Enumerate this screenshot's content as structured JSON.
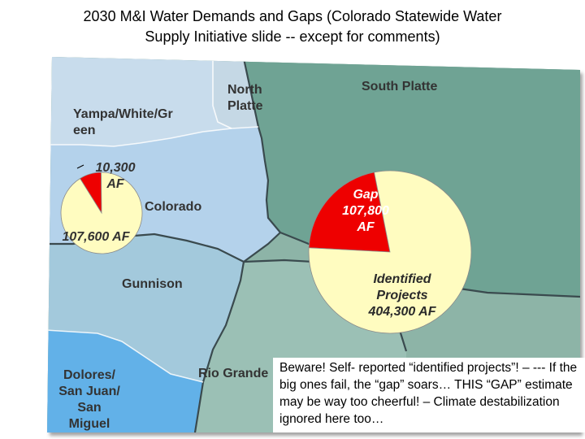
{
  "title": {
    "line1": "2030 M&I Water Demands and Gaps (Colorado Statewide Water",
    "line2": "Supply Initiative slide  -- except for comments)"
  },
  "colors": {
    "yampa": "#c8dcec",
    "north_platte": "#c5d8e5",
    "south_platte": "#6fa394",
    "colorado": "#b4d2eb",
    "gunnison": "#a3c9dc",
    "rio_grande": "#9bc0b5",
    "arkansas": "#8db4a7",
    "dolores": "#62b1e8",
    "gap_red": "#ee0000",
    "pie_fill": "#fffcc0"
  },
  "regions": {
    "yampa": "Yampa/White/Gr\neen",
    "north_platte": "North\nPlatte",
    "south_platte": "South Platte",
    "colorado": "Colorado",
    "gunnison": "Gunnison",
    "dolores": "Dolores/\nSan Juan/\nSan\nMiguel",
    "rio_grande": "Rio Grande"
  },
  "chart_data": [
    {
      "type": "pie",
      "region": "Colorado",
      "slices": [
        {
          "label": "10,300 AF",
          "value": 10300,
          "color": "#ee0000"
        },
        {
          "label": "107,600 AF",
          "value": 107600,
          "color": "#fffcc0"
        }
      ]
    },
    {
      "type": "pie",
      "region": "South Platte",
      "slices": [
        {
          "label": "Gap\n107,800\nAF",
          "value": 107800,
          "color": "#ee0000"
        },
        {
          "label": "Identified\nProjects\n404,300 AF",
          "value": 404300,
          "color": "#fffcc0"
        }
      ]
    }
  ],
  "pie_labels": {
    "small_gap": "10,300\nAF",
    "small_rest": "107,600 AF",
    "big_gap": "Gap\n107,800\nAF",
    "big_rest": "Identified\nProjects\n404,300 AF"
  },
  "comment": "Beware!  Self- reported “identified projects”! – --- If the big ones fail, the “gap” soars… THIS “GAP” estimate may be way too cheerful! – Climate destabilization ignored here too…"
}
